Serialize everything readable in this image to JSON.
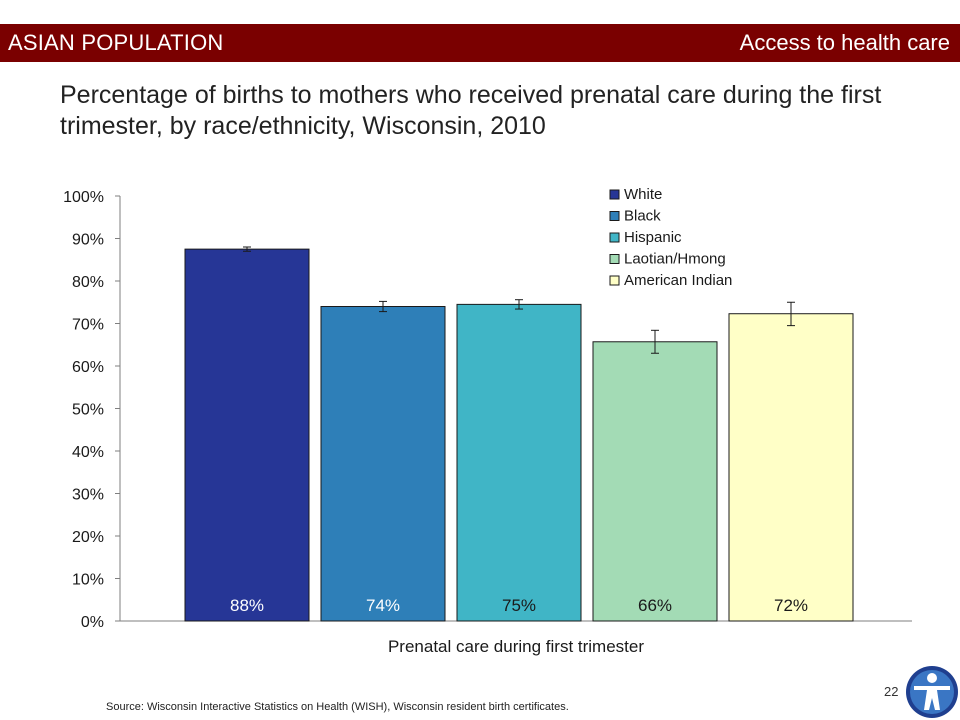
{
  "banner": {
    "left_label": "ASIAN POPULATION",
    "right_label": "Access to health care"
  },
  "title": "Percentage of births to mothers who received prenatal care during the first trimester, by race/ethnicity, Wisconsin, 2010",
  "source": "Source: Wisconsin Interactive Statistics on Health (WISH),  Wisconsin resident birth certificates.",
  "page_number": "22",
  "logo_icon": "health-figure-icon",
  "colors": {
    "banner": "#7a0000",
    "White": "#263696",
    "Black": "#2e7fb8",
    "Hispanic": "#40b5c6",
    "Laotian/Hmong": "#a3dbb5",
    "American Indian": "#ffffc7"
  },
  "chart_data": {
    "type": "bar",
    "title": "",
    "xlabel": "Prenatal care during first trimester",
    "ylabel": "",
    "categories": [
      "Prenatal care during first trimester"
    ],
    "ylim": [
      0,
      100
    ],
    "yticks": [
      "0%",
      "10%",
      "20%",
      "30%",
      "40%",
      "50%",
      "60%",
      "70%",
      "80%",
      "90%",
      "100%"
    ],
    "legend_position": "top-right",
    "series": [
      {
        "name": "White",
        "value": 87.5,
        "label": "88%",
        "error": [
          87.0,
          88.0
        ],
        "color": "#263696",
        "label_color": "#ffffff"
      },
      {
        "name": "Black",
        "value": 74.0,
        "label": "74%",
        "error": [
          72.8,
          75.2
        ],
        "color": "#2e7fb8",
        "label_color": "#ffffff"
      },
      {
        "name": "Hispanic",
        "value": 74.5,
        "label": "75%",
        "error": [
          73.4,
          75.6
        ],
        "color": "#40b5c6",
        "label_color": "#1a1a1a"
      },
      {
        "name": "Laotian/Hmong",
        "value": 65.7,
        "label": "66%",
        "error": [
          63.0,
          68.4
        ],
        "color": "#a3dbb5",
        "label_color": "#1a1a1a"
      },
      {
        "name": "American Indian",
        "value": 72.3,
        "label": "72%",
        "error": [
          69.5,
          75.0
        ],
        "color": "#ffffc7",
        "label_color": "#1a1a1a"
      }
    ]
  }
}
